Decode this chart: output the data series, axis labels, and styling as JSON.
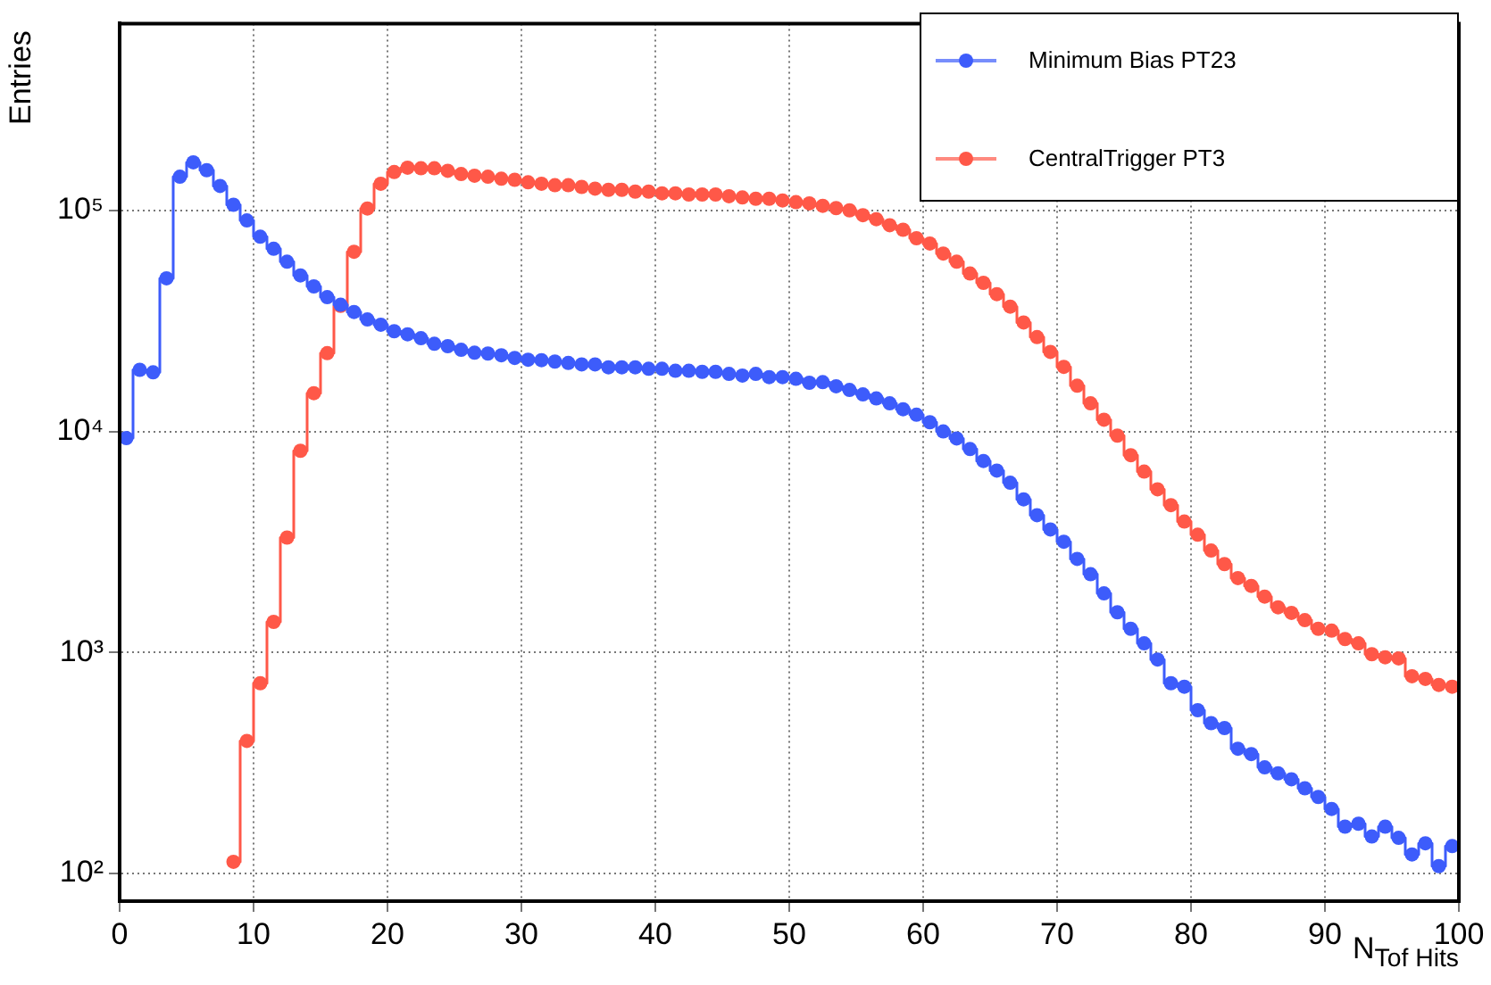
{
  "chart_data": {
    "type": "step",
    "xlabel": "N$_{Tof Hits}$",
    "ylabel": "Entries",
    "x": [
      0.5,
      1.5,
      2.5,
      3.5,
      4.5,
      5.5,
      6.5,
      7.5,
      8.5,
      9.5,
      10.5,
      11.5,
      12.5,
      13.5,
      14.5,
      15.5,
      16.5,
      17.5,
      18.5,
      19.5,
      20.5,
      21.5,
      22.5,
      23.5,
      24.5,
      25.5,
      26.5,
      27.5,
      28.5,
      29.5,
      30.5,
      31.5,
      32.5,
      33.5,
      34.5,
      35.5,
      36.5,
      37.5,
      38.5,
      39.5,
      40.5,
      41.5,
      42.5,
      43.5,
      44.5,
      45.5,
      46.5,
      47.5,
      48.5,
      49.5,
      50.5,
      51.5,
      52.5,
      53.5,
      54.5,
      55.5,
      56.5,
      57.5,
      58.5,
      59.5,
      60.5,
      61.5,
      62.5,
      63.5,
      64.5,
      65.5,
      66.5,
      67.5,
      68.5,
      69.5,
      70.5,
      71.5,
      72.5,
      73.5,
      74.5,
      75.5,
      76.5,
      77.5,
      78.5,
      79.5,
      80.5,
      81.5,
      82.5,
      83.5,
      84.5,
      85.5,
      86.5,
      87.5,
      88.5,
      89.5,
      90.5,
      91.5,
      92.5,
      93.5,
      94.5,
      95.5,
      96.5,
      97.5,
      98.5,
      99.5
    ],
    "series": [
      {
        "name": "Minimum Bias PT23",
        "color": "#3d5cfb",
        "values": [
          9330,
          19000,
          18500,
          49300,
          142000,
          165000,
          152000,
          129000,
          106000,
          90000,
          76000,
          67000,
          58600,
          50800,
          45300,
          40500,
          37400,
          34700,
          32100,
          30400,
          28400,
          27500,
          26400,
          24900,
          24300,
          23400,
          22700,
          22500,
          22100,
          21500,
          21100,
          21000,
          20700,
          20400,
          20100,
          20100,
          19500,
          19500,
          19500,
          19200,
          19200,
          18800,
          18800,
          18600,
          18600,
          18200,
          17900,
          18200,
          17600,
          17600,
          17300,
          16600,
          16700,
          16000,
          15400,
          14700,
          14100,
          13400,
          12600,
          11900,
          11000,
          10000,
          9290,
          8320,
          7350,
          6650,
          5860,
          4930,
          4180,
          3600,
          3170,
          2650,
          2260,
          1850,
          1520,
          1280,
          1100,
          929,
          726,
          700,
          548,
          479,
          455,
          367,
          347,
          302,
          284,
          267,
          243,
          222,
          196,
          163,
          168,
          147,
          163,
          145,
          122,
          137,
          108,
          133
        ]
      },
      {
        "name": "CentralTrigger PT3",
        "color": "#ff5848",
        "x": [
          8.5,
          9.5,
          10.5,
          11.5,
          12.5,
          13.5,
          14.5,
          15.5,
          16.5,
          17.5,
          18.5,
          19.5,
          20.5,
          21.5,
          22.5,
          23.5,
          24.5,
          25.5,
          26.5,
          27.5,
          28.5,
          29.5,
          30.5,
          31.5,
          32.5,
          33.5,
          34.5,
          35.5,
          36.5,
          37.5,
          38.5,
          39.5,
          40.5,
          41.5,
          42.5,
          43.5,
          44.5,
          45.5,
          46.5,
          47.5,
          48.5,
          49.5,
          50.5,
          51.5,
          52.5,
          53.5,
          54.5,
          55.5,
          56.5,
          57.5,
          58.5,
          59.5,
          60.5,
          61.5,
          62.5,
          63.5,
          64.5,
          65.5,
          66.5,
          67.5,
          68.5,
          69.5,
          70.5,
          71.5,
          72.5,
          73.5,
          74.5,
          75.5,
          76.5,
          77.5,
          78.5,
          79.5,
          80.5,
          81.5,
          82.5,
          83.5,
          84.5,
          85.5,
          86.5,
          87.5,
          88.5,
          89.5,
          90.5,
          91.5,
          92.5,
          93.5,
          94.5,
          95.5,
          96.5,
          97.5,
          98.5,
          99.5
        ],
        "values": [
          113,
          398,
          726,
          1375,
          3310,
          8170,
          14900,
          22600,
          37000,
          65000,
          102000,
          132000,
          149000,
          156000,
          155000,
          155000,
          151000,
          146000,
          143500,
          142000,
          139000,
          137500,
          134000,
          132000,
          130000,
          130000,
          127700,
          125400,
          123900,
          123900,
          121600,
          121600,
          119400,
          119400,
          118000,
          118000,
          118000,
          115900,
          114400,
          112900,
          112900,
          110900,
          108900,
          107600,
          104900,
          102400,
          100000,
          95100,
          91200,
          85700,
          81700,
          74800,
          70800,
          63800,
          58600,
          51800,
          47000,
          41800,
          36700,
          31100,
          26700,
          22900,
          19600,
          16100,
          13400,
          11300,
          9570,
          7810,
          6580,
          5470,
          4640,
          3910,
          3410,
          2890,
          2510,
          2170,
          2000,
          1790,
          1600,
          1510,
          1400,
          1280,
          1255,
          1150,
          1100,
          982,
          951,
          940,
          781,
          759,
          713,
          700
        ]
      }
    ],
    "xlim": [
      0,
      100
    ],
    "xticks": [
      0,
      10,
      20,
      30,
      40,
      50,
      60,
      70,
      80,
      90,
      100
    ],
    "ylim": [
      75,
      700000
    ],
    "yticks": [
      {
        "value": 100,
        "label": "10²"
      },
      {
        "value": 1000,
        "label": "10³"
      },
      {
        "value": 10000,
        "label": "10⁴"
      },
      {
        "value": 100000,
        "label": "10⁵"
      }
    ],
    "log": "y",
    "grid": true,
    "legend": "top right",
    "marker": "circle",
    "line_style": "solid"
  }
}
